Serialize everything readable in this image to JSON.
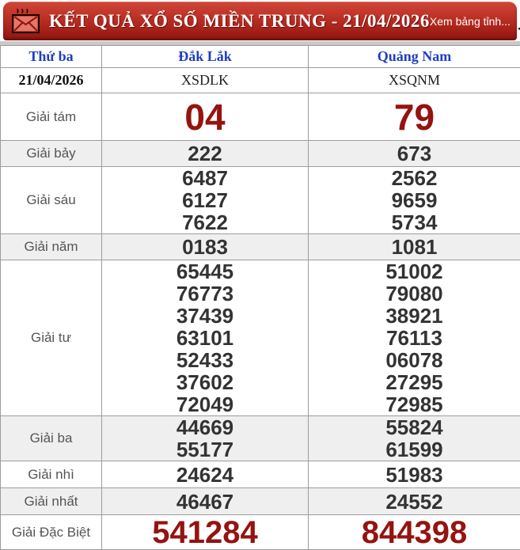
{
  "header": {
    "title": "KẾT QUẢ XỔ SỐ MIỀN TRUNG - 21/04/2026",
    "province_link": "Xem bảng tỉnh...",
    "icons": [
      "envelope-icon",
      "bar-chart-icon"
    ],
    "colors": {
      "bar_top": "#cf4739",
      "bar_bottom": "#8e150e",
      "title_text": "#ffffff"
    }
  },
  "table": {
    "day_label": "Thứ ba",
    "date": "21/04/2026",
    "stations": [
      {
        "name": "Đắk Lắk",
        "code": "XSDLK"
      },
      {
        "name": "Quảng Nam",
        "code": "XSQNM"
      }
    ],
    "rows": [
      {
        "key": "g8",
        "label": "Giải tám",
        "values": [
          [
            "04"
          ],
          [
            "79"
          ]
        ]
      },
      {
        "key": "g7",
        "label": "Giải bảy",
        "values": [
          [
            "222"
          ],
          [
            "673"
          ]
        ]
      },
      {
        "key": "g6",
        "label": "Giải sáu",
        "values": [
          [
            "6487",
            "6127",
            "7622"
          ],
          [
            "2562",
            "9659",
            "5734"
          ]
        ]
      },
      {
        "key": "g5",
        "label": "Giải năm",
        "values": [
          [
            "0183"
          ],
          [
            "1081"
          ]
        ]
      },
      {
        "key": "g4",
        "label": "Giải tư",
        "values": [
          [
            "65445",
            "76773",
            "37439",
            "63101",
            "52433",
            "37602",
            "72049"
          ],
          [
            "51002",
            "79080",
            "38921",
            "76113",
            "06078",
            "27295",
            "72985"
          ]
        ]
      },
      {
        "key": "g3",
        "label": "Giải ba",
        "values": [
          [
            "44669",
            "55177"
          ],
          [
            "55824",
            "61599"
          ]
        ]
      },
      {
        "key": "g2",
        "label": "Giải nhì",
        "values": [
          [
            "24624"
          ],
          [
            "51983"
          ]
        ]
      },
      {
        "key": "g1",
        "label": "Giải nhất",
        "values": [
          [
            "46467"
          ],
          [
            "24552"
          ]
        ]
      },
      {
        "key": "db",
        "label": "Giải Đặc Biệt",
        "values": [
          [
            "541284"
          ],
          [
            "844398"
          ]
        ]
      }
    ],
    "colors": {
      "highlight_number": "#951310",
      "normal_number": "#333333",
      "station_link": "#1f3dc2",
      "row_shade": "#efefef",
      "border": "#9c9c9c"
    }
  }
}
